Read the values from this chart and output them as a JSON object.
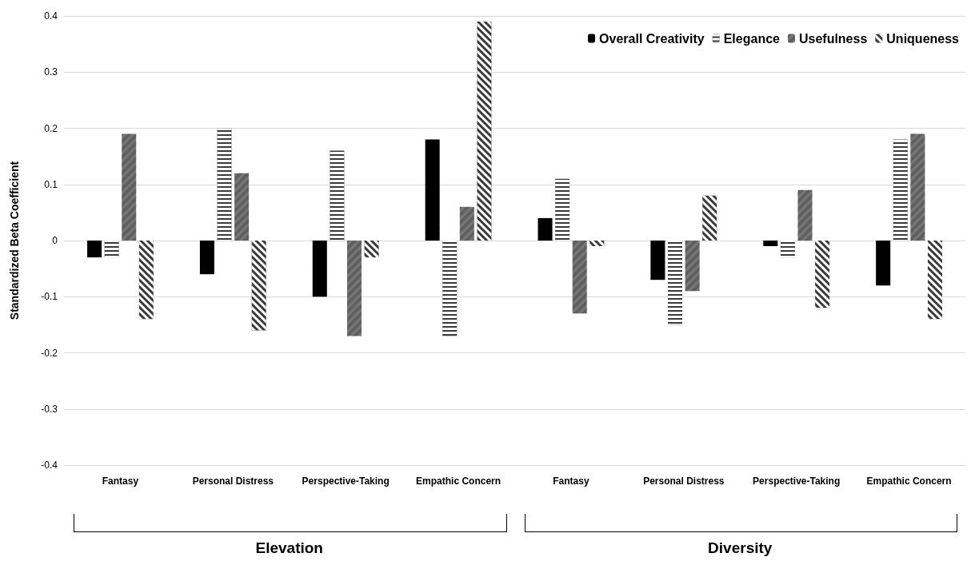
{
  "chart_data": {
    "type": "bar",
    "ylabel": "Standardized Beta Coefficient",
    "categories": [
      "Fantasy",
      "Personal Distress",
      "Perspective-Taking",
      "Empathic Concern",
      "Fantasy",
      "Personal Distress",
      "Perspective-Taking",
      "Empathic Concern"
    ],
    "series": [
      {
        "name": "Overall Creativity",
        "color": "#000000",
        "values": [
          -0.03,
          -0.06,
          -0.1,
          0.18,
          0.04,
          -0.07,
          -0.01,
          -0.08
        ]
      },
      {
        "name": "Elegance",
        "color": "#3a3a3a",
        "values": [
          -0.03,
          0.2,
          0.16,
          -0.17,
          0.11,
          -0.15,
          -0.03,
          0.18
        ]
      },
      {
        "name": "Usefulness",
        "color": "#777777",
        "values": [
          0.19,
          0.12,
          -0.17,
          0.06,
          -0.13,
          -0.09,
          0.09,
          0.19
        ]
      },
      {
        "name": "Uniqueness",
        "color": "#3a3a3a",
        "values": [
          -0.14,
          -0.16,
          -0.03,
          0.39,
          -0.01,
          0.08,
          -0.12,
          -0.14
        ]
      }
    ],
    "ylim": [
      -0.4,
      0.4
    ],
    "yticks": [
      -0.4,
      -0.3,
      -0.2,
      -0.1,
      0,
      0.1,
      0.2,
      0.3,
      0.4
    ],
    "grid": "y",
    "legend": "top right",
    "annotations": [
      "Elevation",
      "Diversity"
    ]
  }
}
